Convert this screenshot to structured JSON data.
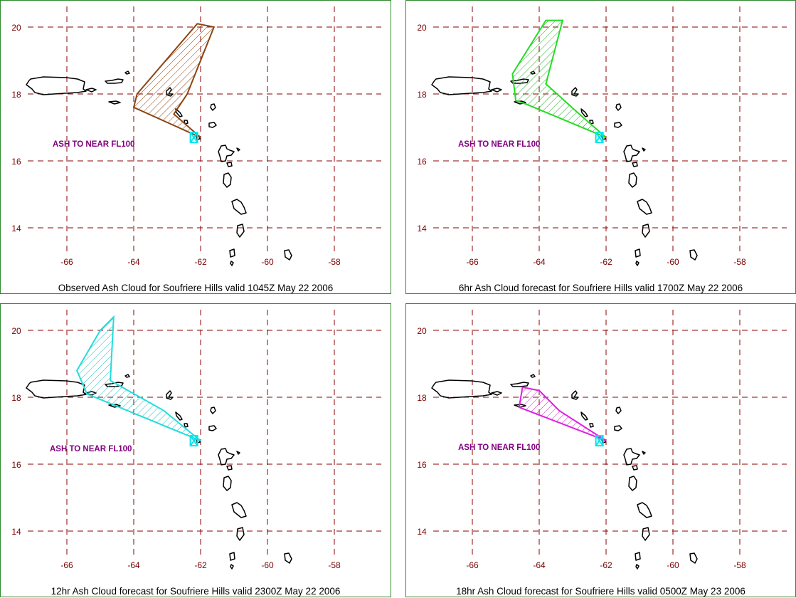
{
  "panels": [
    {
      "caption": "Observed Ash Cloud for Soufriere  Hills valid 1045Z May 22 2006",
      "ash_label": "ASH TO NEAR FL100",
      "outline_color": "#8b4513",
      "hatch_color": "#8b4513",
      "polygon": [
        [
          -62.0,
          16.7
        ],
        [
          -62.8,
          17.4
        ],
        [
          -62.4,
          18.0
        ],
        [
          -61.6,
          20.0
        ],
        [
          -62.1,
          20.1
        ],
        [
          -63.9,
          18.0
        ],
        [
          -64.0,
          17.6
        ],
        [
          -62.0,
          16.7
        ]
      ]
    },
    {
      "caption": "6hr Ash Cloud forecast for Soufriere  Hills valid 1700Z May 22 2006",
      "ash_label": "ASH TO NEAR FL100",
      "outline_color": "#22dd22",
      "hatch_color": "#22aa22",
      "polygon": [
        [
          -62.0,
          16.7
        ],
        [
          -62.8,
          17.4
        ],
        [
          -63.8,
          18.3
        ],
        [
          -63.3,
          20.2
        ],
        [
          -63.8,
          20.2
        ],
        [
          -64.8,
          18.6
        ],
        [
          -64.7,
          17.8
        ],
        [
          -64.4,
          17.7
        ],
        [
          -62.0,
          16.7
        ]
      ]
    },
    {
      "caption": "12hr Ash Cloud forecast for Soufriere  Hills valid 2300Z May 22 2006",
      "ash_label": "ASH TO NEAR FL100",
      "outline_color": "#22dddd",
      "hatch_color": "#22bbbb",
      "polygon": [
        [
          -62.0,
          16.7
        ],
        [
          -63.1,
          17.6
        ],
        [
          -64.7,
          18.5
        ],
        [
          -64.6,
          20.4
        ],
        [
          -65.0,
          20.0
        ],
        [
          -65.7,
          18.8
        ],
        [
          -65.4,
          18.1
        ],
        [
          -62.0,
          16.7
        ]
      ]
    },
    {
      "caption": "18hr Ash Cloud forecast for Soufriere  Hills valid 0500Z May 23 2006",
      "ash_label": "ASH TO NEAR FL100",
      "outline_color": "#dd22dd",
      "hatch_color": "#cc22cc",
      "polygon": [
        [
          -62.0,
          16.7
        ],
        [
          -63.4,
          17.6
        ],
        [
          -64.0,
          18.2
        ],
        [
          -64.5,
          18.3
        ],
        [
          -64.6,
          17.7
        ],
        [
          -62.0,
          16.7
        ]
      ]
    }
  ],
  "map": {
    "lon_ticks": [
      "-66",
      "-64",
      "-62",
      "-60",
      "-58"
    ],
    "lat_ticks": [
      "20",
      "18",
      "16",
      "14"
    ],
    "lon_values": [
      -66,
      -64,
      -62,
      -60,
      -58
    ],
    "lat_values": [
      20,
      18,
      16,
      14
    ],
    "grid_color": "#8b0000",
    "coast_color": "#000000",
    "volcano_marker_color": "#00e5ee"
  }
}
